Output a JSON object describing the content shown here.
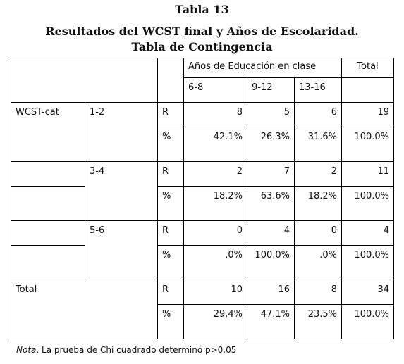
{
  "caption": {
    "table_number": "Tabla 13",
    "title": "Resultados del WCST final y Años de Escolaridad.",
    "subtitle": "Tabla de Contingencia"
  },
  "header": {
    "group_label": "Años de Educación en clase",
    "total_label": "Total",
    "col1": "6-8",
    "col2": "9-12",
    "col3": "13-16"
  },
  "rows": [
    {
      "group": "WCST-cat",
      "sub": "1-2",
      "r_label": "R",
      "p_label": "%",
      "r": [
        "8",
        "5",
        "6",
        "19"
      ],
      "p": [
        "42.1%",
        "26.3%",
        "31.6%",
        "100.0%"
      ]
    },
    {
      "group": "",
      "sub": "3-4",
      "r_label": "R",
      "p_label": "%",
      "r": [
        "2",
        "7",
        "2",
        "11"
      ],
      "p": [
        "18.2%",
        "63.6%",
        "18.2%",
        "100.0%"
      ]
    },
    {
      "group": "",
      "sub": "5-6",
      "r_label": "R",
      "p_label": "%",
      "r": [
        "0",
        "4",
        "0",
        "4"
      ],
      "p": [
        ".0%",
        "100.0%",
        ".0%",
        "100.0%"
      ]
    },
    {
      "group": "Total",
      "sub": "",
      "r_label": "R",
      "p_label": "%",
      "r": [
        "10",
        "16",
        "8",
        "34"
      ],
      "p": [
        "29.4%",
        "47.1%",
        "23.5%",
        "100.0%"
      ]
    }
  ],
  "note": {
    "label": "Nota",
    "text": ". La prueba de Chi cuadrado determinó p>0.05"
  }
}
